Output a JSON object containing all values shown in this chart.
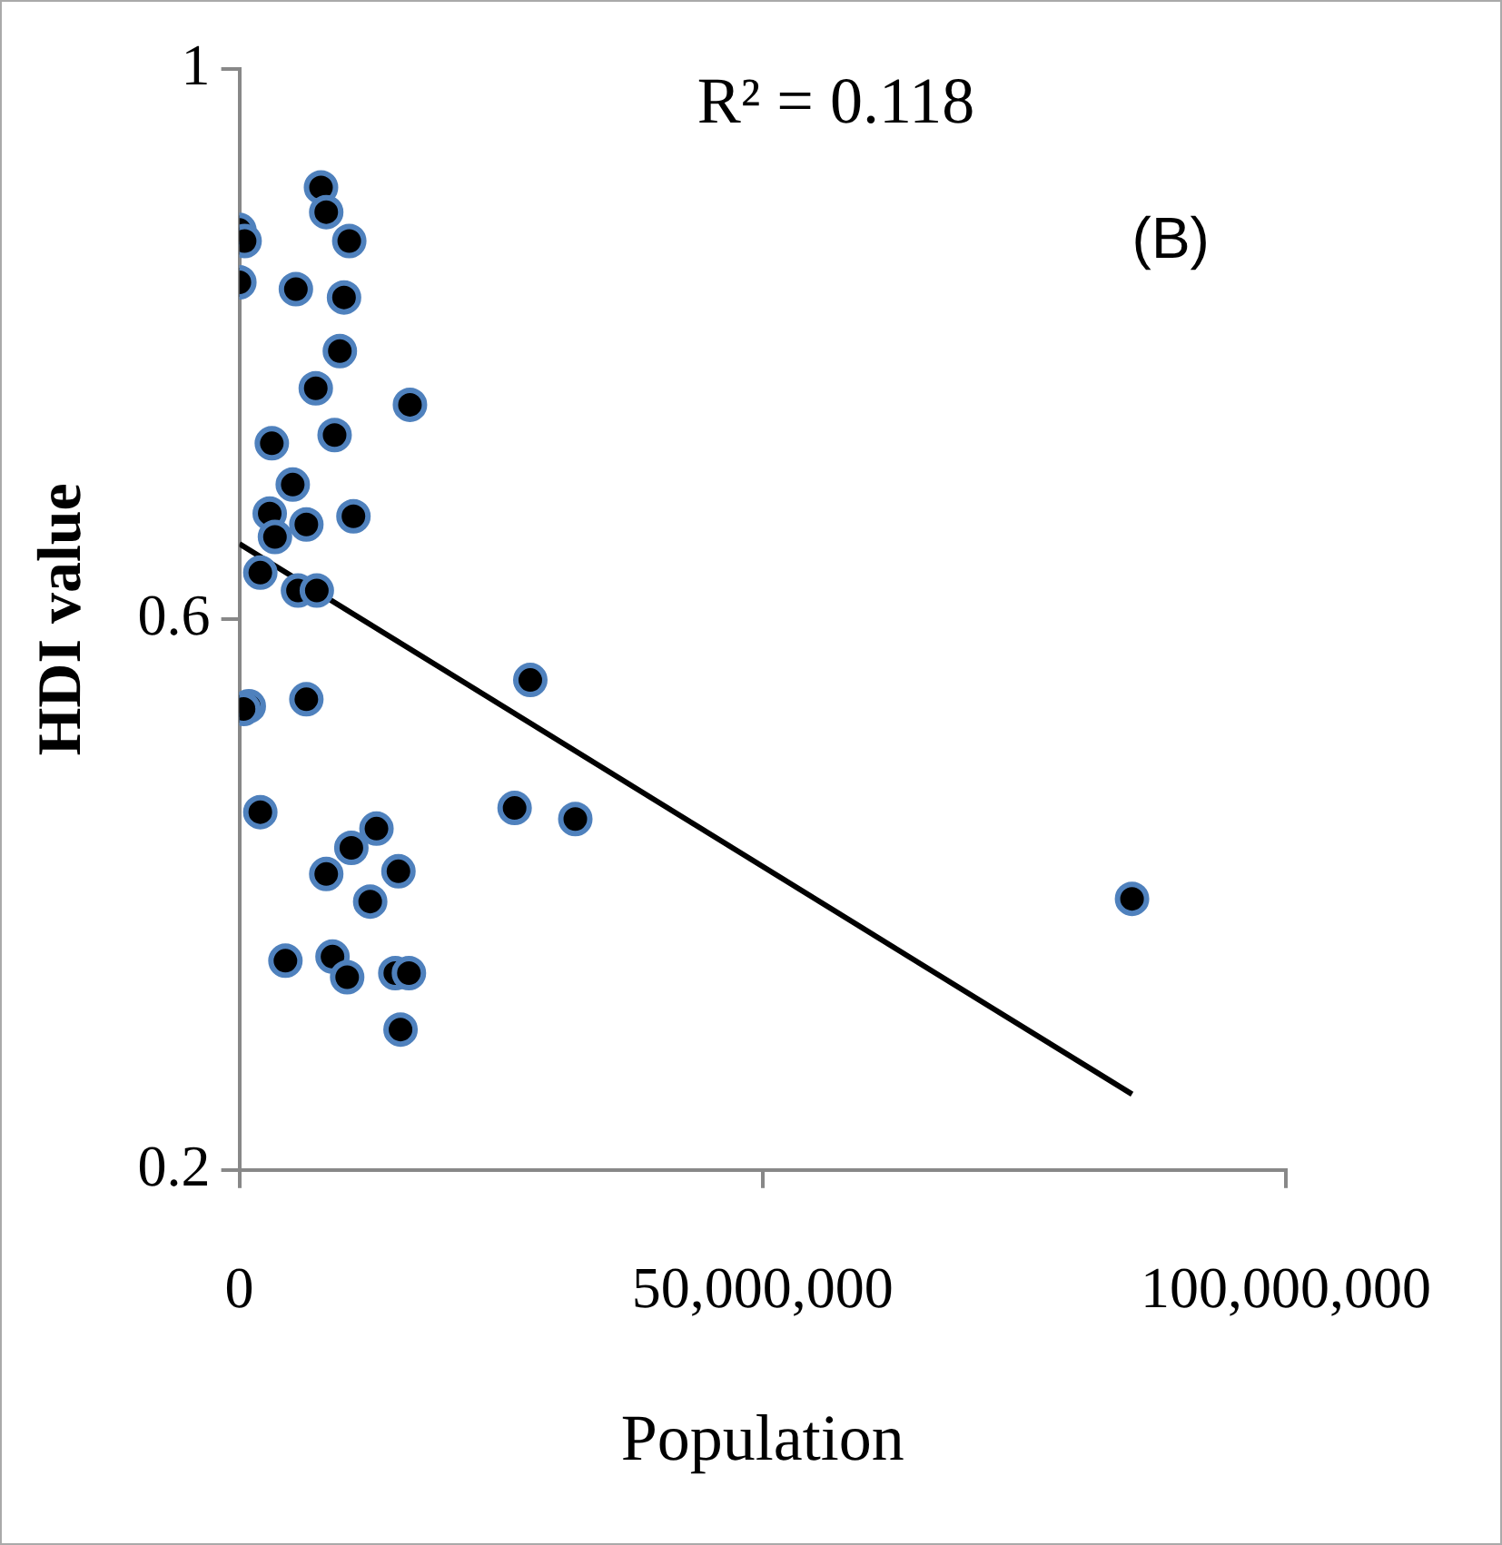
{
  "chart_data": {
    "type": "scatter",
    "xlabel": "Population",
    "ylabel": "HDI value",
    "annotations": [
      "R² = 0.118",
      "(B)"
    ],
    "xlim": [
      0,
      100000000
    ],
    "xticks": [
      0,
      {
        "value": 50000000,
        "label": "50,000,000"
      },
      {
        "value": 100000000,
        "label": "100,000,000"
      }
    ],
    "ylim": [
      0.2,
      1
    ],
    "yticks": [
      0.2,
      0.6,
      1
    ],
    "grid": false,
    "legend": false,
    "marker": "circle",
    "series": [
      {
        "color": "#000000",
        "x": [
          0,
          500000,
          0,
          7800000,
          8300000,
          10500000,
          5400000,
          10000000,
          9600000,
          7300000,
          9100000,
          16300000,
          3100000,
          5100000,
          6400000,
          10900000,
          2900000,
          3400000,
          5600000,
          7400000,
          2000000,
          900000,
          400000,
          6400000,
          27800000,
          2000000,
          13100000,
          10700000,
          15200000,
          8300000,
          12500000,
          26300000,
          32100000,
          4400000,
          8900000,
          10300000,
          14900000,
          16200000,
          15400000,
          85300000
        ],
        "values": [
          0.883,
          0.875,
          0.845,
          0.914,
          0.896,
          0.875,
          0.84,
          0.834,
          0.795,
          0.768,
          0.734,
          0.756,
          0.728,
          0.698,
          0.669,
          0.675,
          0.677,
          0.66,
          0.621,
          0.621,
          0.634,
          0.537,
          0.535,
          0.542,
          0.556,
          0.46,
          0.448,
          0.434,
          0.417,
          0.415,
          0.395,
          0.463,
          0.455,
          0.352,
          0.355,
          0.34,
          0.343,
          0.343,
          0.302,
          0.397
        ]
      },
      {
        "type": "line",
        "color": "#000000",
        "marker": "none",
        "line_style": "solid",
        "x": [
          0,
          85300000
        ],
        "values": [
          0.655,
          0.255
        ]
      }
    ]
  }
}
